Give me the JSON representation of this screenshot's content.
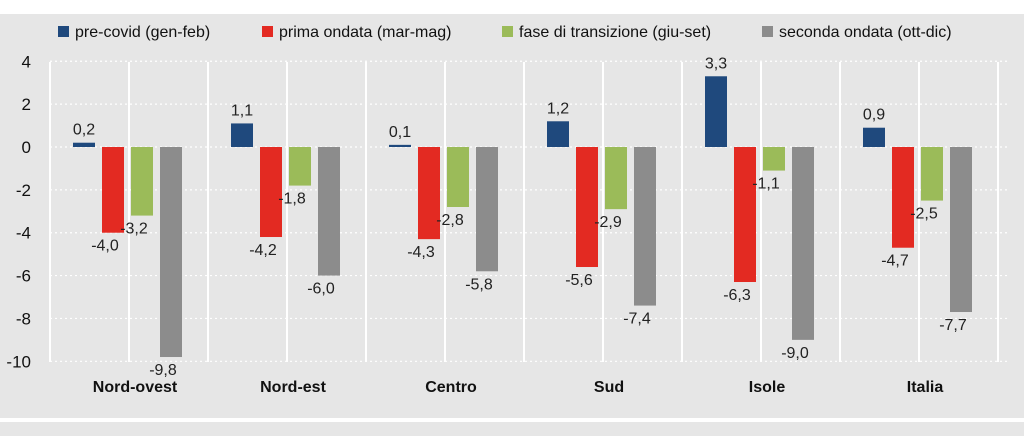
{
  "chart_data": {
    "type": "bar",
    "categories": [
      "Nord-ovest",
      "Nord-est",
      "Centro",
      "Sud",
      "Isole",
      "Italia"
    ],
    "series": [
      {
        "name": "pre-covid (gen-feb)",
        "color": "#1f497d",
        "values": [
          0.2,
          1.1,
          0.1,
          1.2,
          3.3,
          0.9
        ]
      },
      {
        "name": "prima ondata (mar-mag)",
        "color": "#e32a22",
        "values": [
          -4.0,
          -4.2,
          -4.3,
          -5.6,
          -6.3,
          -4.7
        ]
      },
      {
        "name": "fase di transizione (giu-set)",
        "color": "#9bbb59",
        "values": [
          -3.2,
          -1.8,
          -2.8,
          -2.9,
          -1.1,
          -2.5
        ]
      },
      {
        "name": "seconda ondata (ott-dic)",
        "color": "#8c8c8c",
        "values": [
          -9.8,
          -6.0,
          -5.8,
          -7.4,
          -9.0,
          -7.7
        ]
      }
    ],
    "ylim": [
      -10,
      4
    ],
    "yticks": [
      4,
      2,
      0,
      -2,
      -4,
      -6,
      -8,
      -10
    ],
    "decimal_separator": ",",
    "grid": true,
    "legend_position": "top",
    "title": "",
    "xlabel": "",
    "ylabel": ""
  }
}
